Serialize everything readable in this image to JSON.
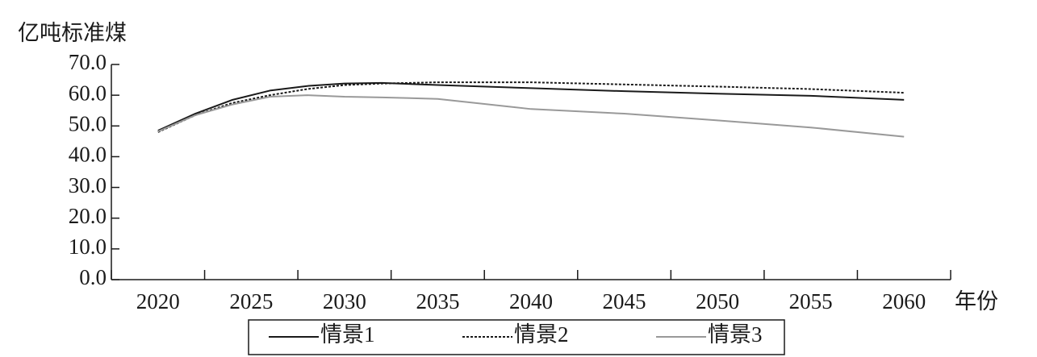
{
  "chart_data": {
    "type": "line",
    "y_label": "亿吨标准煤",
    "x_label": "年份",
    "x": [
      2020,
      2022,
      2024,
      2026,
      2028,
      2030,
      2032,
      2035,
      2040,
      2045,
      2050,
      2055,
      2060
    ],
    "xlim": [
      2017.5,
      2062.5
    ],
    "xticks": [
      2020,
      2025,
      2030,
      2035,
      2040,
      2045,
      2050,
      2055,
      2060
    ],
    "ylim": [
      0,
      70
    ],
    "yticks": [
      {
        "value": 0,
        "label": "0.0"
      },
      {
        "value": 10,
        "label": "10.0"
      },
      {
        "value": 20,
        "label": "20.0"
      },
      {
        "value": 30,
        "label": "30.0"
      },
      {
        "value": 40,
        "label": "40.0"
      },
      {
        "value": 50,
        "label": "50.0"
      },
      {
        "value": 60,
        "label": "60.0"
      },
      {
        "value": 70,
        "label": "70.0"
      }
    ],
    "legend": "bottom",
    "series": [
      {
        "name": "情景1",
        "color": "#1a1a1a",
        "style": "solid",
        "values": [
          48.5,
          54,
          58.5,
          61.5,
          63,
          63.8,
          64,
          63.3,
          62.3,
          61.3,
          60.5,
          59.8,
          58.5
        ]
      },
      {
        "name": "情景2",
        "color": "#1a1a1a",
        "style": "dotted",
        "values": [
          48,
          53.5,
          57.5,
          60,
          62,
          63.3,
          63.8,
          64.2,
          64.2,
          63.5,
          62.8,
          62,
          60.8
        ]
      },
      {
        "name": "情景3",
        "color": "#999999",
        "style": "solid",
        "values": [
          48.2,
          53.5,
          57,
          59.5,
          60,
          59.5,
          59.3,
          58.8,
          55.5,
          54,
          51.8,
          49.5,
          46.5
        ]
      }
    ]
  }
}
